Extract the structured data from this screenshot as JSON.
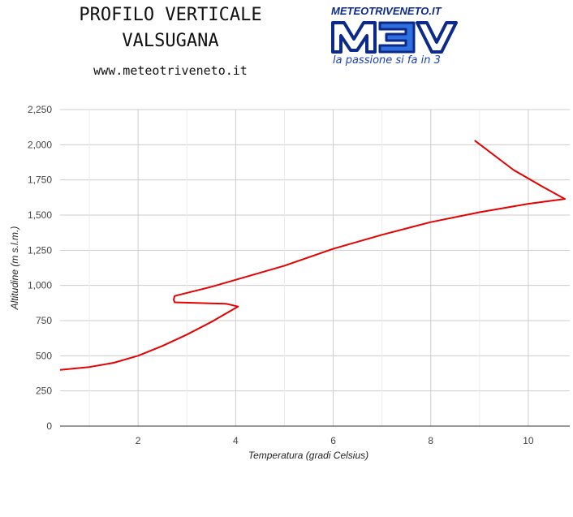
{
  "header": {
    "title_line1": "PROFILO VERTICALE",
    "title_line2": "VALSUGANA",
    "url": "www.meteotriveneto.it"
  },
  "logo": {
    "top_text": "METEOTRIVENETO.IT",
    "mark": "M3V",
    "tagline": "la passione si fa in 3",
    "colors": {
      "primary": "#0b2a8a",
      "accent": "#2f6fe0"
    }
  },
  "chart_data": {
    "type": "line",
    "title": "",
    "xlabel": "Temperatura (gradi Celsius)",
    "ylabel": "Altitudine (m s.l.m.)",
    "xlim": [
      0.4,
      10.85
    ],
    "ylim": [
      0,
      2250
    ],
    "x_ticks": [
      2,
      4,
      6,
      8,
      10
    ],
    "y_ticks": [
      0,
      250,
      500,
      750,
      1000,
      1250,
      1500,
      1750,
      2000,
      2250
    ],
    "y_tick_labels": [
      "0",
      "250",
      "500",
      "750",
      "1,000",
      "1,250",
      "1,500",
      "1,750",
      "2,000",
      "2,250"
    ],
    "grid": true,
    "legend": "none",
    "series": [
      {
        "color": "#e60000",
        "points": [
          [
            0.4,
            400
          ],
          [
            1.0,
            420
          ],
          [
            1.5,
            450
          ],
          [
            2.0,
            500
          ],
          [
            2.5,
            570
          ],
          [
            3.0,
            650
          ],
          [
            3.5,
            740
          ],
          [
            3.9,
            820
          ],
          [
            4.05,
            850
          ],
          [
            3.8,
            870
          ],
          [
            3.2,
            875
          ],
          [
            2.75,
            880
          ],
          [
            2.73,
            900
          ],
          [
            2.75,
            925
          ],
          [
            3.5,
            990
          ],
          [
            5.0,
            1140
          ],
          [
            6.0,
            1260
          ],
          [
            7.0,
            1360
          ],
          [
            8.0,
            1450
          ],
          [
            9.0,
            1520
          ],
          [
            10.0,
            1580
          ],
          [
            10.75,
            1615
          ],
          [
            10.3,
            1700
          ],
          [
            9.7,
            1820
          ],
          [
            8.9,
            2030
          ]
        ]
      }
    ]
  }
}
